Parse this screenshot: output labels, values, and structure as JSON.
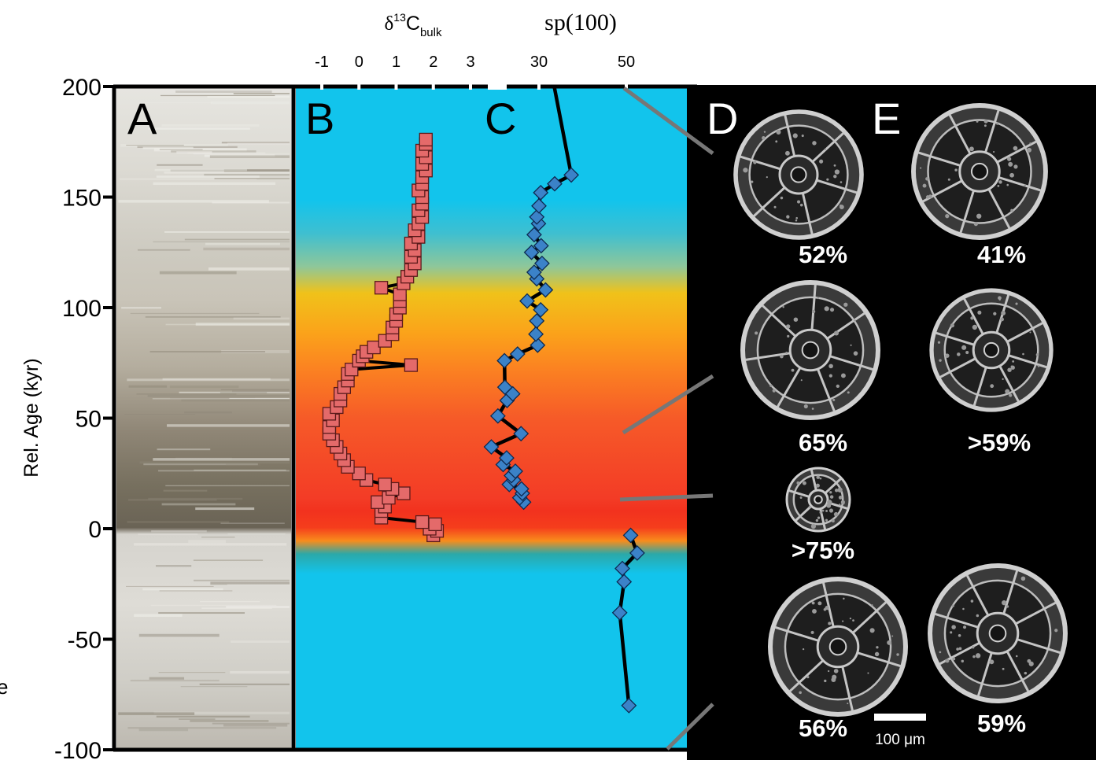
{
  "chart_data": {
    "type": "scatter",
    "ylabel": "Rel. Age (kyr)",
    "y_ticks": [
      "200",
      "150",
      "100",
      "50",
      "0",
      "-50",
      "-100"
    ],
    "ylim": [
      -100,
      200
    ],
    "panels": [
      "A",
      "B",
      "C",
      "D",
      "E"
    ],
    "series": [
      {
        "name": "δ13C bulk",
        "axis_label": {
          "main": "δ",
          "sup": "13",
          "base": "C",
          "sub": "bulk"
        },
        "x_ticks": [
          "-1",
          "0",
          "1",
          "2",
          "3"
        ],
        "xlim": [
          -1,
          3
        ],
        "marker": "square",
        "color": "#e46a6a",
        "points": [
          [
            -3,
            2.0
          ],
          [
            -1,
            2.1
          ],
          [
            0,
            1.9
          ],
          [
            2,
            2.05
          ],
          [
            3,
            1.7
          ],
          [
            5,
            0.6
          ],
          [
            8,
            0.6
          ],
          [
            10,
            0.7
          ],
          [
            12,
            0.5
          ],
          [
            14,
            0.8
          ],
          [
            16,
            1.2
          ],
          [
            18,
            0.9
          ],
          [
            20,
            0.7
          ],
          [
            22,
            0.2
          ],
          [
            25,
            0.0
          ],
          [
            28,
            -0.3
          ],
          [
            31,
            -0.4
          ],
          [
            34,
            -0.5
          ],
          [
            37,
            -0.6
          ],
          [
            40,
            -0.7
          ],
          [
            43,
            -0.8
          ],
          [
            46,
            -0.8
          ],
          [
            49,
            -0.7
          ],
          [
            52,
            -0.8
          ],
          [
            55,
            -0.6
          ],
          [
            58,
            -0.5
          ],
          [
            61,
            -0.5
          ],
          [
            64,
            -0.4
          ],
          [
            67,
            -0.3
          ],
          [
            70,
            -0.3
          ],
          [
            72,
            -0.2
          ],
          [
            74,
            1.4
          ],
          [
            76,
            0.0
          ],
          [
            78,
            0.1
          ],
          [
            80,
            0.2
          ],
          [
            82,
            0.4
          ],
          [
            85,
            0.7
          ],
          [
            88,
            0.9
          ],
          [
            91,
            0.9
          ],
          [
            94,
            1.0
          ],
          [
            97,
            1.0
          ],
          [
            100,
            1.1
          ],
          [
            103,
            1.1
          ],
          [
            106,
            1.1
          ],
          [
            109,
            0.6
          ],
          [
            111,
            1.2
          ],
          [
            114,
            1.3
          ],
          [
            117,
            1.4
          ],
          [
            120,
            1.5
          ],
          [
            123,
            1.4
          ],
          [
            126,
            1.5
          ],
          [
            129,
            1.4
          ],
          [
            132,
            1.6
          ],
          [
            135,
            1.5
          ],
          [
            138,
            1.6
          ],
          [
            141,
            1.7
          ],
          [
            144,
            1.6
          ],
          [
            147,
            1.7
          ],
          [
            150,
            1.7
          ],
          [
            153,
            1.6
          ],
          [
            156,
            1.7
          ],
          [
            159,
            1.7
          ],
          [
            162,
            1.8
          ],
          [
            165,
            1.7
          ],
          [
            168,
            1.8
          ],
          [
            171,
            1.7
          ],
          [
            174,
            1.8
          ],
          [
            176,
            1.8
          ]
        ]
      },
      {
        "name": "sp(100)",
        "axis_label": {
          "main": "sp(100)"
        },
        "x_ticks": [
          "30",
          "50"
        ],
        "xlim": [
          -1,
          3
        ],
        "marker": "diamond",
        "color": "#3b82c8",
        "points": [
          [
            -80,
            50.6
          ],
          [
            -38,
            48.5
          ],
          [
            -24,
            49.5
          ],
          [
            -18,
            49.1
          ],
          [
            -11,
            52.5
          ],
          [
            -3,
            51
          ],
          [
            12,
            26.5
          ],
          [
            14,
            25.6
          ],
          [
            16,
            26.2
          ],
          [
            18,
            26
          ],
          [
            20,
            23.2
          ],
          [
            22,
            24.2
          ],
          [
            24,
            23.7
          ],
          [
            26,
            24.6
          ],
          [
            29,
            21.8
          ],
          [
            32,
            22.6
          ],
          [
            37,
            19.1
          ],
          [
            43,
            25.9
          ],
          [
            51,
            20.6
          ],
          [
            58,
            22.7
          ],
          [
            61,
            24
          ],
          [
            64,
            22.2
          ],
          [
            76,
            22.1
          ],
          [
            79,
            25.1
          ],
          [
            83,
            29.7
          ],
          [
            88,
            29.3
          ],
          [
            94,
            29.5
          ],
          [
            99,
            30.4
          ],
          [
            103,
            27.3
          ],
          [
            108,
            31.5
          ],
          [
            113,
            29.5
          ],
          [
            116,
            28.9
          ],
          [
            120,
            30.7
          ],
          [
            125,
            28.3
          ],
          [
            128,
            30.5
          ],
          [
            133,
            28.9
          ],
          [
            138,
            29.9
          ],
          [
            141,
            29.5
          ],
          [
            146,
            30
          ],
          [
            152,
            30.4
          ],
          [
            156,
            33.6
          ],
          [
            160,
            37.4
          ],
          [
            200,
            33.5
          ]
        ]
      }
    ],
    "thin_sections": {
      "D": [
        "52%",
        "65%",
        ">75%",
        "56%"
      ],
      "E": [
        "41%",
        ">59%",
        "59%"
      ]
    },
    "scale_bar": "100 μm"
  },
  "edge_text": "e"
}
